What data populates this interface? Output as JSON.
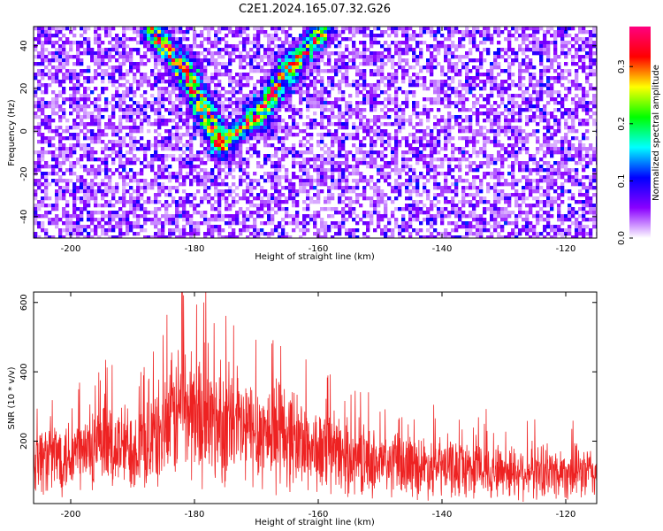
{
  "title": "C2E1.2024.165.07.32.G26",
  "chart_data": [
    {
      "type": "heatmap",
      "xlabel": "Height of straight line (km)",
      "ylabel": "Frequency (Hz)",
      "xlim": [
        -206,
        -115
      ],
      "ylim": [
        -50,
        49
      ],
      "x_ticks": [
        -200,
        -180,
        -160,
        -140,
        -120
      ],
      "y_ticks": [
        -40,
        -20,
        0,
        20,
        40
      ],
      "colorbar": {
        "label": "Normalized spectral amplitude",
        "range": [
          0.0,
          0.37
        ],
        "ticks": [
          "0.0",
          "0.1",
          "0.2",
          "0.3"
        ],
        "tick_values": [
          0.0,
          0.1,
          0.2,
          0.3
        ],
        "colormap": [
          "#ffffff",
          "#8a00ff",
          "#0000ff",
          "#00ffff",
          "#00ff00",
          "#ffff00",
          "#ff0000",
          "#ff0080"
        ]
      },
      "ridge": {
        "description_points": [
          {
            "x": -187,
            "y": 47
          },
          {
            "x": -182,
            "y": 30
          },
          {
            "x": -176,
            "y": -5
          },
          {
            "x": -170,
            "y": 8
          },
          {
            "x": -165,
            "y": 30
          },
          {
            "x": -160,
            "y": 46
          }
        ]
      },
      "noise_level": 0.05
    },
    {
      "type": "line",
      "xlabel": "Height of straight line (km)",
      "ylabel": "SNR (10 * v/v)",
      "xlim": [
        -206,
        -115
      ],
      "ylim": [
        20,
        630
      ],
      "x_ticks": [
        -200,
        -180,
        -160,
        -140,
        -120
      ],
      "y_ticks": [
        200,
        400,
        600
      ],
      "color": "#ee2222",
      "envelope": [
        {
          "x": -206,
          "y": 150
        },
        {
          "x": -195,
          "y": 175
        },
        {
          "x": -188,
          "y": 190
        },
        {
          "x": -185,
          "y": 230
        },
        {
          "x": -182,
          "y": 300
        },
        {
          "x": -178,
          "y": 260
        },
        {
          "x": -172,
          "y": 230
        },
        {
          "x": -165,
          "y": 220
        },
        {
          "x": -160,
          "y": 170
        },
        {
          "x": -150,
          "y": 135
        },
        {
          "x": -140,
          "y": 125
        },
        {
          "x": -130,
          "y": 115
        },
        {
          "x": -120,
          "y": 110
        },
        {
          "x": -115,
          "y": 110
        }
      ],
      "peak": {
        "x": -182,
        "y": 630
      },
      "spread": 0.55
    }
  ]
}
